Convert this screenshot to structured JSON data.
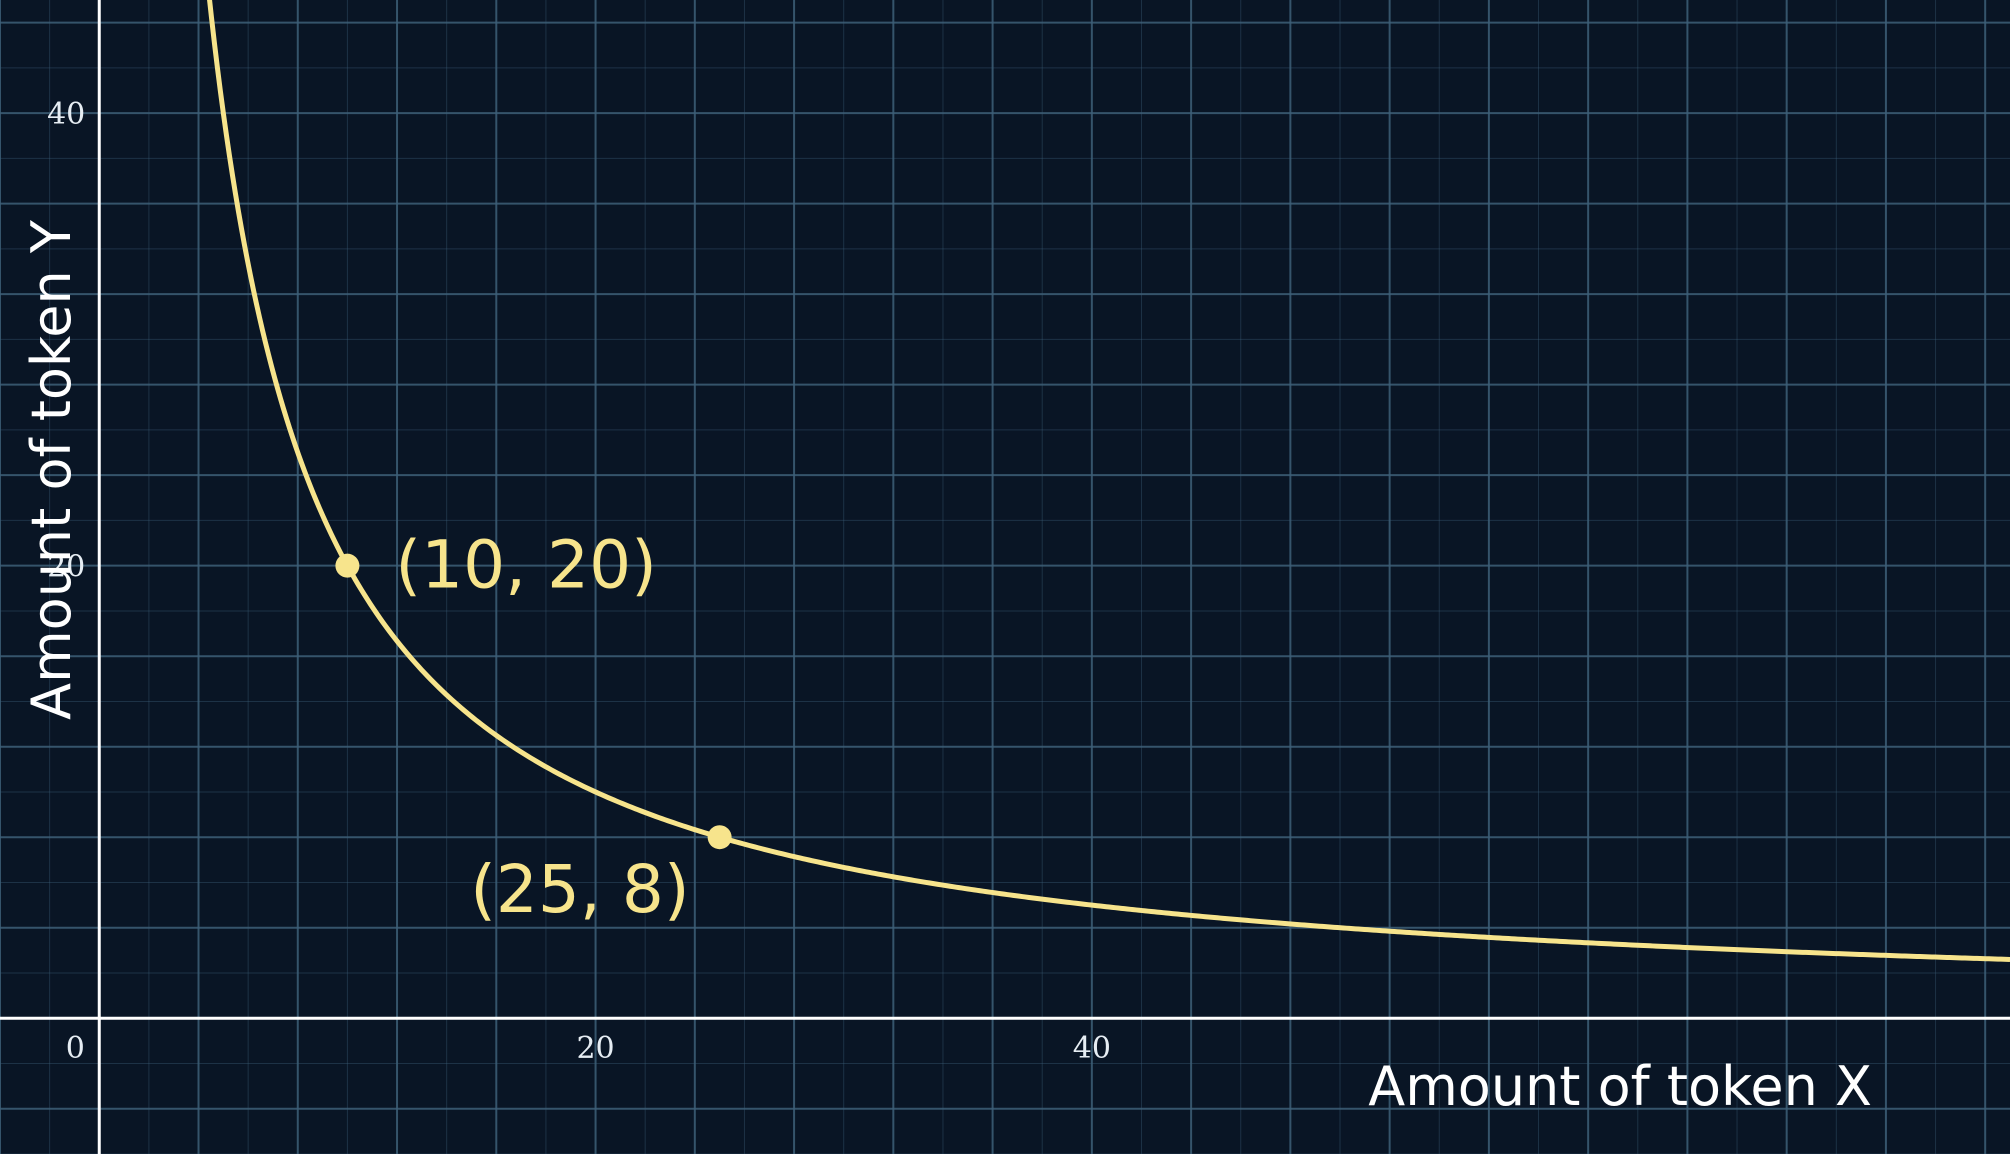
{
  "chart_data": {
    "type": "line",
    "title": "",
    "xlabel": "Amount of token X",
    "ylabel": "Amount of token Y",
    "xlim": [
      -4,
      77
    ],
    "ylim": [
      -6,
      45
    ],
    "x_ticks": [
      {
        "value": 0,
        "label": "0"
      },
      {
        "value": 20,
        "label": "20"
      },
      {
        "value": 40,
        "label": "40"
      }
    ],
    "y_ticks": [
      {
        "value": 20,
        "label": "20"
      },
      {
        "value": 40,
        "label": "40"
      }
    ],
    "grid": true,
    "legend": "none",
    "series": [
      {
        "curve": "x*y=200",
        "x_range": [
          4.4,
          77
        ],
        "color": "#f7e48c"
      }
    ],
    "points": [
      {
        "x": 10,
        "y": 20,
        "label": "(10, 20)"
      },
      {
        "x": 25,
        "y": 8,
        "label": "(25, 8)"
      }
    ],
    "colors": {
      "background": "#091525",
      "grid": "#3d5f78",
      "axis": "#ffffff",
      "curve": "#f7e48c",
      "label": "#f7e48c"
    }
  }
}
